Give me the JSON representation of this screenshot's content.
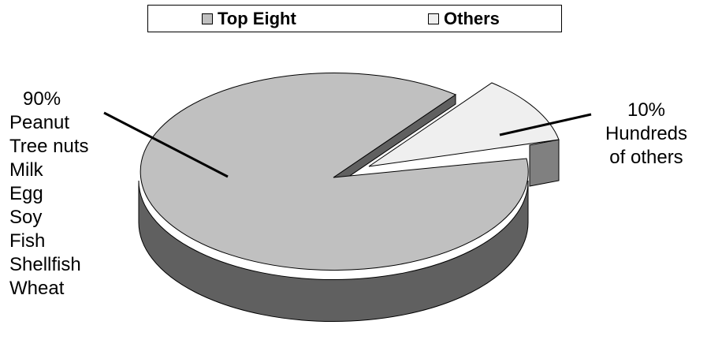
{
  "chart_data": {
    "type": "pie",
    "style": "3d-exploded",
    "legend": {
      "placement": "top",
      "entries": [
        {
          "label": "Top Eight",
          "color": "#c0c0c0"
        },
        {
          "label": "Others",
          "color": "#efefef"
        }
      ]
    },
    "slices": [
      {
        "name": "Top Eight",
        "value": 90,
        "percent_label": "90%",
        "color": "#c0c0c0",
        "side_color": "#606060",
        "items": [
          "Peanut",
          "Tree nuts",
          "Milk",
          "Egg",
          "Soy",
          "Fish",
          "Shellfish",
          "Wheat"
        ]
      },
      {
        "name": "Others",
        "value": 10,
        "percent_label": "10%",
        "color": "#efefef",
        "side_color": "#808080",
        "description_lines": [
          "Hundreds",
          "of others"
        ]
      }
    ]
  }
}
